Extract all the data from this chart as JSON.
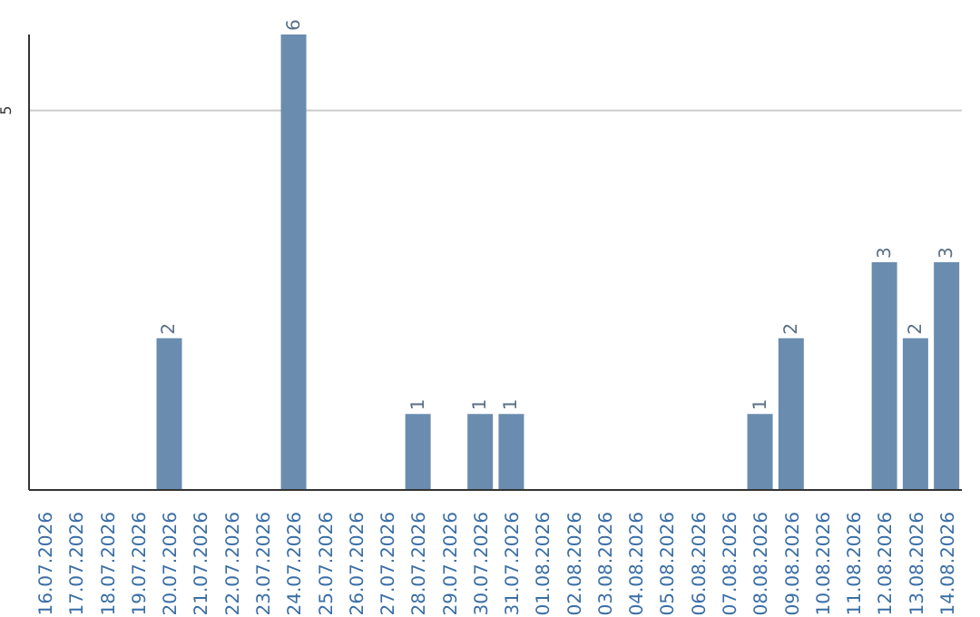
{
  "chart_data": {
    "type": "bar",
    "categories": [
      "16.07.2026",
      "17.07.2026",
      "18.07.2026",
      "19.07.2026",
      "20.07.2026",
      "21.07.2026",
      "22.07.2026",
      "23.07.2026",
      "24.07.2026",
      "25.07.2026",
      "26.07.2026",
      "27.07.2026",
      "28.07.2026",
      "29.07.2026",
      "30.07.2026",
      "31.07.2026",
      "01.08.2026",
      "02.08.2026",
      "03.08.2026",
      "04.08.2026",
      "05.08.2026",
      "06.08.2026",
      "07.08.2026",
      "08.08.2026",
      "09.08.2026",
      "10.08.2026",
      "11.08.2026",
      "12.08.2026",
      "13.08.2026",
      "14.08.2026"
    ],
    "values": [
      null,
      null,
      null,
      null,
      2,
      null,
      null,
      null,
      6,
      null,
      null,
      null,
      1,
      null,
      1,
      1,
      null,
      null,
      null,
      null,
      null,
      null,
      null,
      1,
      2,
      null,
      null,
      3,
      2,
      3
    ],
    "color": "#6a8caf",
    "ylim": [
      0,
      6
    ],
    "yticks": [
      5
    ],
    "grid": "y",
    "data_labels": true
  }
}
